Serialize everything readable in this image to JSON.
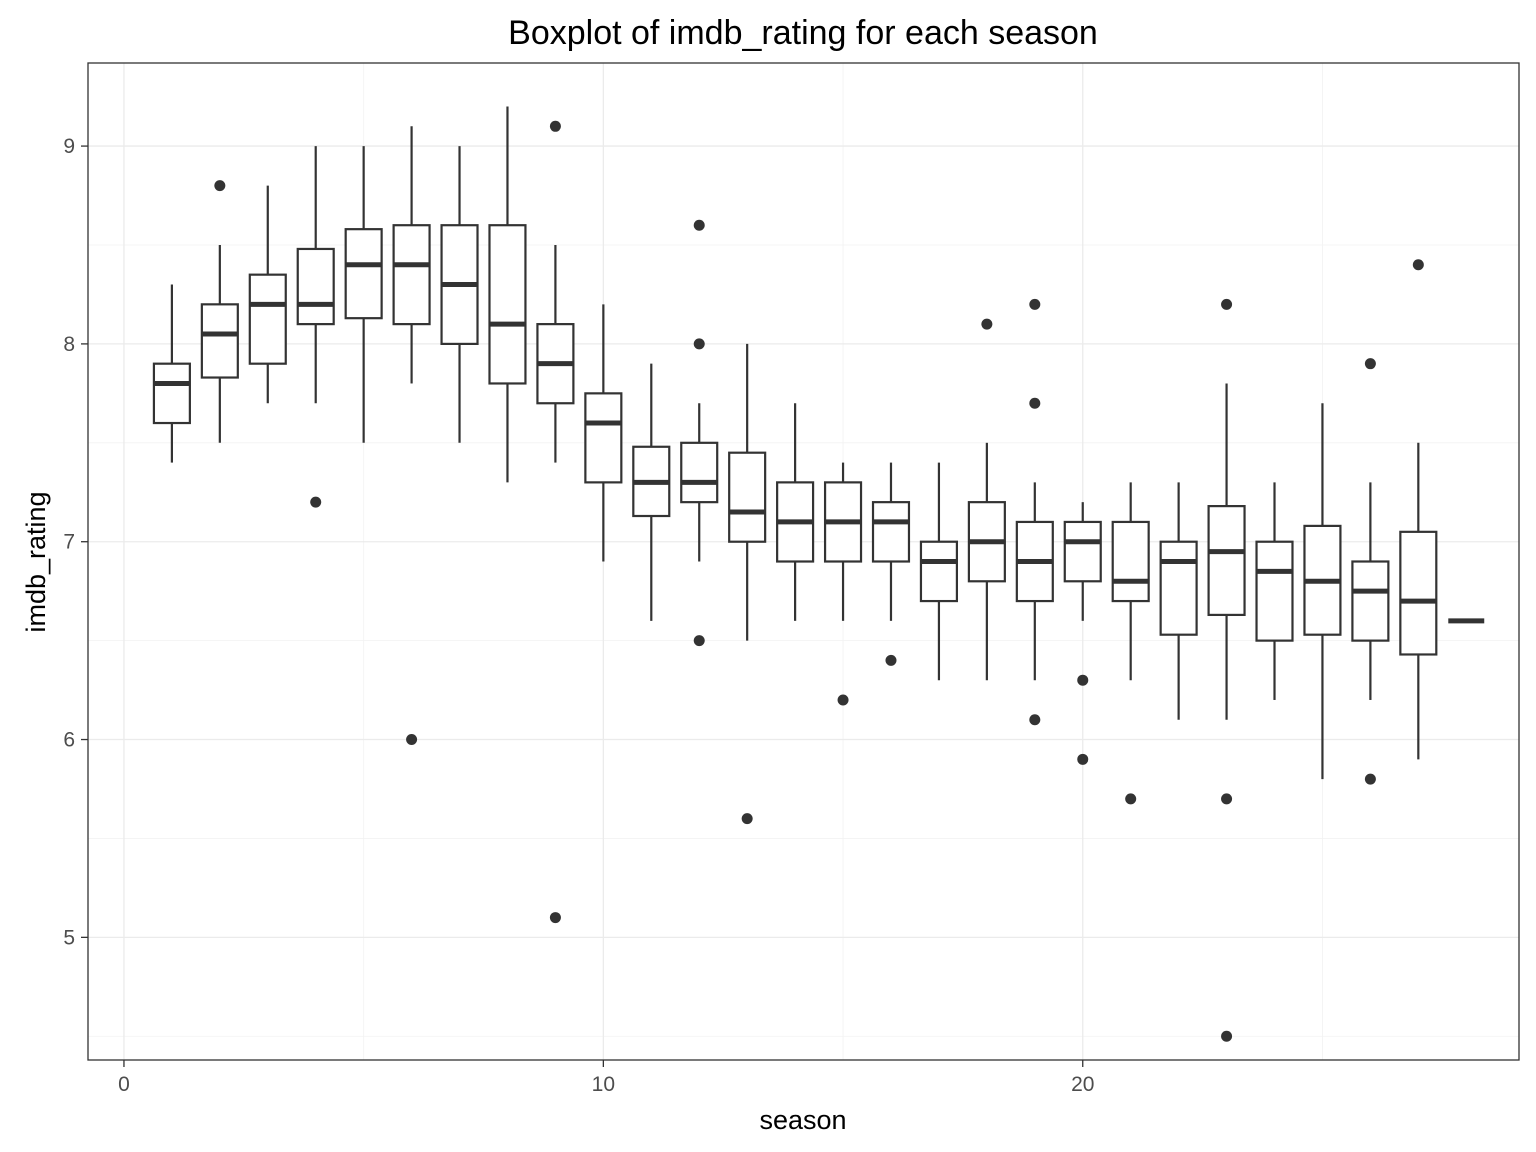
{
  "chart_data": {
    "type": "boxplot",
    "title": "Boxplot of imdb_rating for each season",
    "xlabel": "season",
    "ylabel": "imdb_rating",
    "xlim": [
      -0.75,
      29.1
    ],
    "ylim": [
      4.38,
      9.42
    ],
    "x_ticks": [
      0,
      10,
      20
    ],
    "y_ticks": [
      5,
      6,
      7,
      8,
      9
    ],
    "grid": true,
    "legend": "none",
    "colors": {
      "box_stroke": "#333333",
      "box_fill": "#ffffff",
      "grid": "#ebebeb",
      "border": "#333333"
    },
    "boxes": [
      {
        "season": 1,
        "lower": 7.4,
        "q1": 7.6,
        "median": 7.8,
        "q3": 7.9,
        "upper": 8.3,
        "outliers": []
      },
      {
        "season": 2,
        "lower": 7.5,
        "q1": 7.83,
        "median": 8.05,
        "q3": 8.2,
        "upper": 8.5,
        "outliers": [
          8.8
        ]
      },
      {
        "season": 3,
        "lower": 7.7,
        "q1": 7.9,
        "median": 8.2,
        "q3": 8.35,
        "upper": 8.8,
        "outliers": []
      },
      {
        "season": 4,
        "lower": 7.7,
        "q1": 8.1,
        "median": 8.2,
        "q3": 8.48,
        "upper": 9.0,
        "outliers": [
          7.2
        ]
      },
      {
        "season": 5,
        "lower": 7.5,
        "q1": 8.13,
        "median": 8.4,
        "q3": 8.58,
        "upper": 9.0,
        "outliers": []
      },
      {
        "season": 6,
        "lower": 7.8,
        "q1": 8.1,
        "median": 8.4,
        "q3": 8.6,
        "upper": 9.1,
        "outliers": [
          6.0
        ]
      },
      {
        "season": 7,
        "lower": 7.5,
        "q1": 8.0,
        "median": 8.3,
        "q3": 8.6,
        "upper": 9.0,
        "outliers": []
      },
      {
        "season": 8,
        "lower": 7.3,
        "q1": 7.8,
        "median": 8.1,
        "q3": 8.6,
        "upper": 9.2,
        "outliers": []
      },
      {
        "season": 9,
        "lower": 7.4,
        "q1": 7.7,
        "median": 7.9,
        "q3": 8.1,
        "upper": 8.5,
        "outliers": [
          9.1,
          5.1
        ]
      },
      {
        "season": 10,
        "lower": 6.9,
        "q1": 7.3,
        "median": 7.6,
        "q3": 7.75,
        "upper": 8.2,
        "outliers": []
      },
      {
        "season": 11,
        "lower": 6.6,
        "q1": 7.13,
        "median": 7.3,
        "q3": 7.48,
        "upper": 7.9,
        "outliers": []
      },
      {
        "season": 12,
        "lower": 6.9,
        "q1": 7.2,
        "median": 7.3,
        "q3": 7.5,
        "upper": 7.7,
        "outliers": [
          8.6,
          8.0,
          6.5
        ]
      },
      {
        "season": 13,
        "lower": 6.5,
        "q1": 7.0,
        "median": 7.15,
        "q3": 7.45,
        "upper": 8.0,
        "outliers": [
          5.6
        ]
      },
      {
        "season": 14,
        "lower": 6.6,
        "q1": 6.9,
        "median": 7.1,
        "q3": 7.3,
        "upper": 7.7,
        "outliers": []
      },
      {
        "season": 15,
        "lower": 6.6,
        "q1": 6.9,
        "median": 7.1,
        "q3": 7.3,
        "upper": 7.4,
        "outliers": [
          6.2
        ]
      },
      {
        "season": 16,
        "lower": 6.6,
        "q1": 6.9,
        "median": 7.1,
        "q3": 7.2,
        "upper": 7.4,
        "outliers": [
          6.4
        ]
      },
      {
        "season": 17,
        "lower": 6.3,
        "q1": 6.7,
        "median": 6.9,
        "q3": 7.0,
        "upper": 7.4,
        "outliers": []
      },
      {
        "season": 18,
        "lower": 6.3,
        "q1": 6.8,
        "median": 7.0,
        "q3": 7.2,
        "upper": 7.5,
        "outliers": [
          8.1
        ]
      },
      {
        "season": 19,
        "lower": 6.3,
        "q1": 6.7,
        "median": 6.9,
        "q3": 7.1,
        "upper": 7.3,
        "outliers": [
          8.2,
          7.7,
          6.1
        ]
      },
      {
        "season": 20,
        "lower": 6.6,
        "q1": 6.8,
        "median": 7.0,
        "q3": 7.1,
        "upper": 7.2,
        "outliers": [
          6.3,
          5.9
        ]
      },
      {
        "season": 21,
        "lower": 6.3,
        "q1": 6.7,
        "median": 6.8,
        "q3": 7.1,
        "upper": 7.3,
        "outliers": [
          5.7
        ]
      },
      {
        "season": 22,
        "lower": 6.1,
        "q1": 6.53,
        "median": 6.9,
        "q3": 7.0,
        "upper": 7.3,
        "outliers": []
      },
      {
        "season": 23,
        "lower": 6.1,
        "q1": 6.63,
        "median": 6.95,
        "q3": 7.18,
        "upper": 7.8,
        "outliers": [
          8.2,
          5.7,
          4.5
        ]
      },
      {
        "season": 24,
        "lower": 6.2,
        "q1": 6.5,
        "median": 6.85,
        "q3": 7.0,
        "upper": 7.3,
        "outliers": []
      },
      {
        "season": 25,
        "lower": 5.8,
        "q1": 6.53,
        "median": 6.8,
        "q3": 7.08,
        "upper": 7.7,
        "outliers": []
      },
      {
        "season": 26,
        "lower": 6.2,
        "q1": 6.5,
        "median": 6.75,
        "q3": 6.9,
        "upper": 7.3,
        "outliers": [
          7.9,
          5.8
        ]
      },
      {
        "season": 27,
        "lower": 5.9,
        "q1": 6.43,
        "median": 6.7,
        "q3": 7.05,
        "upper": 7.5,
        "outliers": [
          8.4
        ]
      },
      {
        "season": 28,
        "lower": 6.6,
        "q1": 6.6,
        "median": 6.6,
        "q3": 6.6,
        "upper": 6.6,
        "outliers": []
      }
    ]
  }
}
